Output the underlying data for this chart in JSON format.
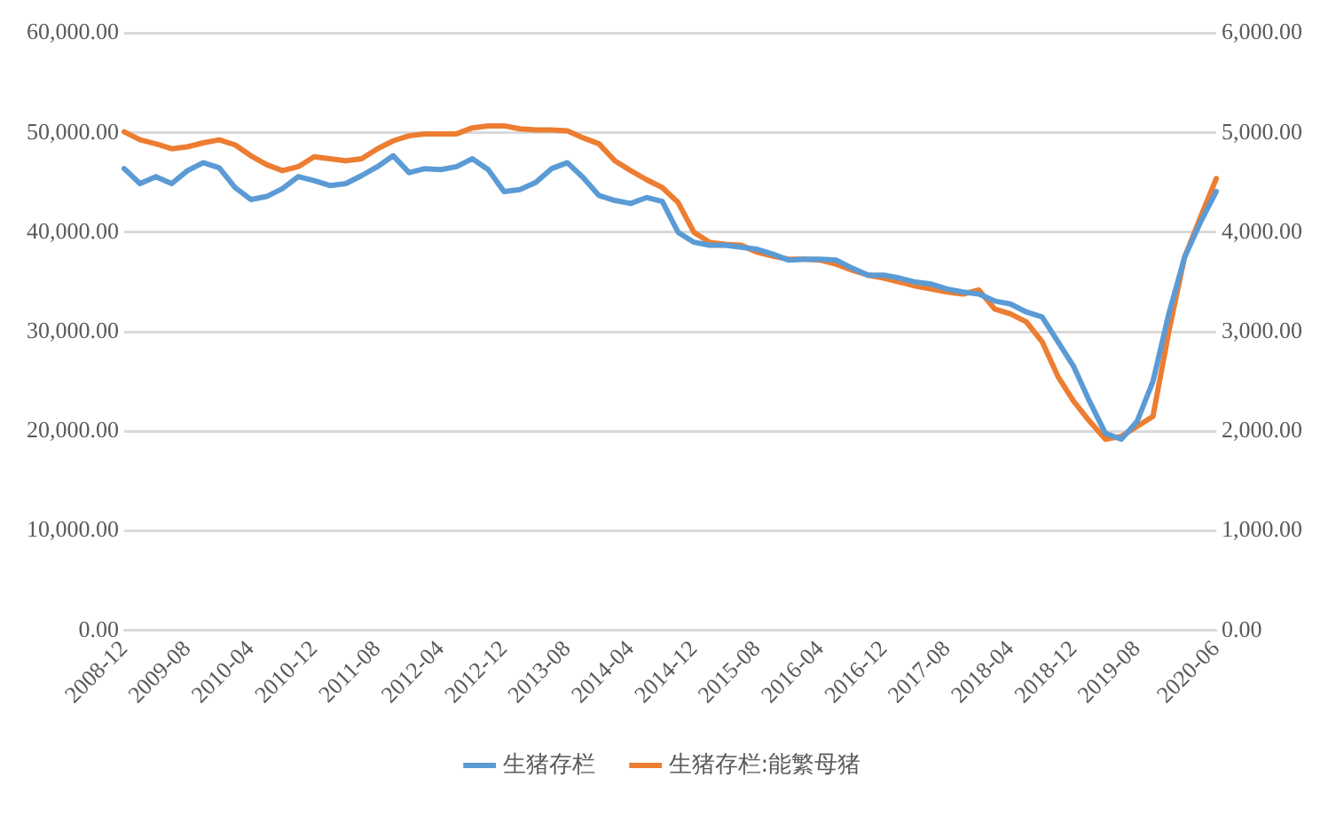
{
  "chart_data": {
    "type": "line",
    "categories": [
      "2008-12",
      null,
      null,
      null,
      "2009-08",
      null,
      null,
      null,
      "2010-04",
      null,
      null,
      null,
      "2010-12",
      null,
      null,
      null,
      "2011-08",
      null,
      null,
      null,
      "2012-04",
      null,
      null,
      null,
      "2012-12",
      null,
      null,
      null,
      "2013-08",
      null,
      null,
      null,
      "2014-04",
      null,
      null,
      null,
      "2014-12",
      null,
      null,
      null,
      "2015-08",
      null,
      null,
      null,
      "2016-04",
      null,
      null,
      null,
      "2016-12",
      null,
      null,
      null,
      "2017-08",
      null,
      null,
      null,
      "2018-04",
      null,
      null,
      null,
      "2018-12",
      null,
      null,
      null,
      "2019-08",
      null,
      null,
      null,
      null,
      "2020-06"
    ],
    "series": [
      {
        "name": "生猪存栏",
        "color": "#5b9bd5",
        "values": [
          46400,
          44900,
          45600,
          44900,
          46200,
          47000,
          46500,
          44500,
          43300,
          43600,
          44400,
          45600,
          45200,
          44700,
          44900,
          45700,
          46600,
          47700,
          46000,
          46400,
          46300,
          46600,
          47400,
          46300,
          44100,
          44300,
          45000,
          46400,
          47000,
          45500,
          43700,
          43200,
          42900,
          43500,
          43100,
          40000,
          39000,
          38700,
          38700,
          38500,
          38300,
          37800,
          37200,
          37300,
          37300,
          37200,
          36400,
          35700,
          35700,
          35400,
          35000,
          34800,
          34300,
          34000,
          33800,
          33100,
          32800,
          32000,
          31500,
          29000,
          26500,
          23000,
          19800,
          19200,
          21000,
          25000,
          31800,
          37500,
          41000,
          44100
        ]
      },
      {
        "name": "生猪存栏:能繁母猪",
        "color": "#ed7d31",
        "axis": "y2",
        "values": [
          5010,
          4930,
          4890,
          4840,
          4860,
          4900,
          4930,
          4880,
          4770,
          4680,
          4620,
          4660,
          4760,
          4740,
          4720,
          4740,
          4840,
          4920,
          4970,
          4990,
          4990,
          4990,
          5050,
          5070,
          5070,
          5040,
          5030,
          5030,
          5020,
          4950,
          4890,
          4720,
          4620,
          4530,
          4450,
          4300,
          4000,
          3900,
          3880,
          3870,
          3800,
          3760,
          3730,
          3730,
          3720,
          3680,
          3620,
          3570,
          3540,
          3500,
          3460,
          3430,
          3400,
          3380,
          3420,
          3230,
          3180,
          3100,
          2900,
          2550,
          2300,
          2100,
          1920,
          1950,
          2050,
          2150,
          3000,
          3750,
          4150,
          4540
        ]
      }
    ],
    "ylim": [
      0,
      60000
    ],
    "yticks": [
      {
        "value": 0,
        "label": "0.00"
      },
      {
        "value": 10000,
        "label": "10,000.00"
      },
      {
        "value": 20000,
        "label": "20,000.00"
      },
      {
        "value": 30000,
        "label": "30,000.00"
      },
      {
        "value": 40000,
        "label": "40,000.00"
      },
      {
        "value": 50000,
        "label": "50,000.00"
      },
      {
        "value": 60000,
        "label": "60,000.00"
      }
    ],
    "y2lim": [
      0,
      6000
    ],
    "y2ticks": [
      {
        "value": 0,
        "label": "0.00"
      },
      {
        "value": 1000,
        "label": "1,000.00"
      },
      {
        "value": 2000,
        "label": "2,000.00"
      },
      {
        "value": 3000,
        "label": "3,000.00"
      },
      {
        "value": 4000,
        "label": "4,000.00"
      },
      {
        "value": 5000,
        "label": "5,000.00"
      },
      {
        "value": 6000,
        "label": "6,000.00"
      }
    ],
    "grid": "y",
    "legend": "bottom",
    "marker": "none",
    "line_style": "solid"
  }
}
